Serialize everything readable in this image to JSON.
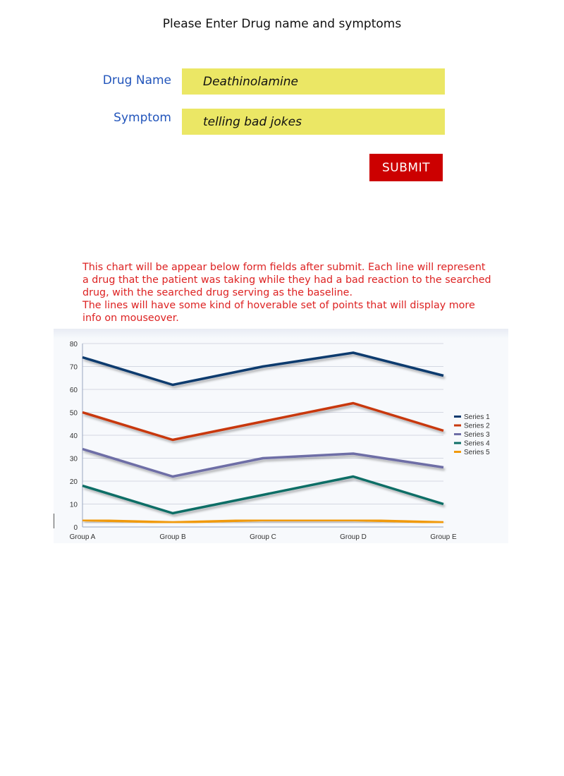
{
  "form": {
    "title": "Please Enter Drug name and symptoms",
    "drug_label": "Drug Name",
    "drug_value": "Deathinolamine",
    "symptom_label": "Symptom",
    "symptom_value": "telling bad jokes",
    "submit_label": "SUBMIT"
  },
  "note": {
    "line1": "This chart will be appear below form fields after submit. Each line will represent a drug that the patient was taking while they had a bad reaction to the searched drug, with the searched drug serving as the baseline.",
    "line2": "The lines will have some kind of hoverable set of points that will display more info on mouseover."
  },
  "chart_data": {
    "type": "line",
    "categories": [
      "Group A",
      "Group B",
      "Group C",
      "Group D",
      "Group E"
    ],
    "ylim": [
      0,
      80
    ],
    "yticks": [
      0,
      10,
      20,
      30,
      40,
      50,
      60,
      70,
      80
    ],
    "grid": true,
    "legend": "right",
    "series": [
      {
        "name": "Series 1",
        "color": "#0b3a6e",
        "values": [
          74,
          62,
          70,
          76,
          66
        ]
      },
      {
        "name": "Series 2",
        "color": "#c8390f",
        "values": [
          50,
          38,
          46,
          54,
          42
        ]
      },
      {
        "name": "Series 3",
        "color": "#6e6ea6",
        "values": [
          34,
          22,
          30,
          32,
          26
        ]
      },
      {
        "name": "Series 4",
        "color": "#0e6e66",
        "values": [
          18,
          6,
          14,
          22,
          10
        ]
      },
      {
        "name": "Series 5",
        "color": "#f09a0c",
        "values": [
          3,
          2,
          3,
          3,
          2
        ]
      }
    ]
  }
}
